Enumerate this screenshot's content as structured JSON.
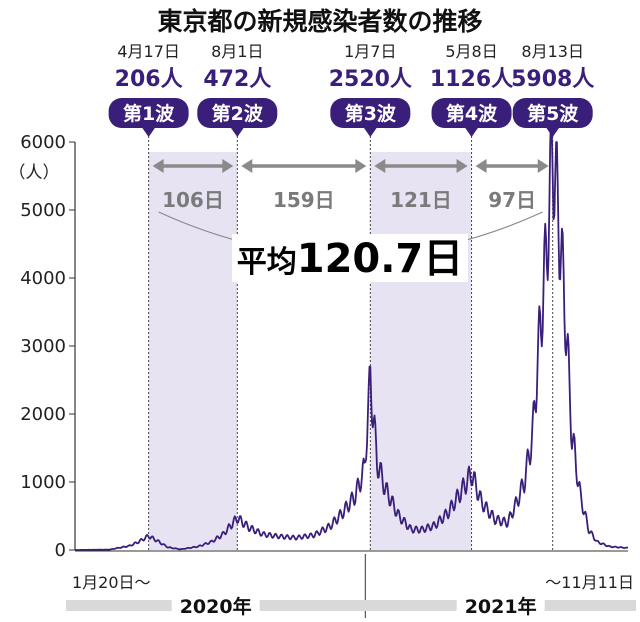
{
  "chart_data": {
    "type": "line",
    "title": "東京都の新規感染者数の推移",
    "y_unit": "（人）",
    "ylim": [
      0,
      6000
    ],
    "yticks": [
      0,
      1000,
      2000,
      3000,
      4000,
      5000,
      6000
    ],
    "x_start_label": "1月20日〜",
    "x_end_label": "〜11月11日",
    "years": [
      "2020年",
      "2021年"
    ],
    "series": [
      {
        "x": [
          "2020-01-20",
          "2020-03-01",
          "2020-03-25",
          "2020-04-05",
          "2020-04-17",
          "2020-04-28",
          "2020-05-10",
          "2020-05-25",
          "2020-06-15",
          "2020-07-01",
          "2020-07-15",
          "2020-08-01",
          "2020-08-15",
          "2020-09-01",
          "2020-09-20",
          "2020-10-10",
          "2020-11-01",
          "2020-11-20",
          "2020-12-05",
          "2020-12-20",
          "2020-12-31",
          "2021-01-07",
          "2021-01-15",
          "2021-01-25",
          "2021-02-10",
          "2021-02-25",
          "2021-03-10",
          "2021-03-25",
          "2021-04-10",
          "2021-04-25",
          "2021-05-08",
          "2021-05-20",
          "2021-06-05",
          "2021-06-20",
          "2021-07-01",
          "2021-07-10",
          "2021-07-20",
          "2021-07-28",
          "2021-08-05",
          "2021-08-13",
          "2021-08-20",
          "2021-08-28",
          "2021-09-05",
          "2021-09-15",
          "2021-09-25",
          "2021-10-05",
          "2021-10-20",
          "2021-11-11"
        ],
        "values": [
          0,
          5,
          60,
          120,
          206,
          130,
          40,
          10,
          50,
          120,
          230,
          472,
          330,
          230,
          200,
          180,
          220,
          350,
          550,
          800,
          1200,
          2520,
          1300,
          900,
          500,
          300,
          300,
          360,
          550,
          850,
          1126,
          700,
          450,
          400,
          700,
          1000,
          1700,
          3100,
          4300,
          5908,
          4900,
          3500,
          1700,
          800,
          300,
          120,
          50,
          30
        ]
      }
    ],
    "waves": [
      {
        "label": "第1波",
        "date": "4月17日",
        "count": "206人",
        "x": "2020-04-17"
      },
      {
        "label": "第2波",
        "date": "8月1日",
        "count": "472人",
        "x": "2020-08-01"
      },
      {
        "label": "第3波",
        "date": "1月7日",
        "count": "2520人",
        "x": "2021-01-07"
      },
      {
        "label": "第4波",
        "date": "5月8日",
        "count": "1126人",
        "x": "2021-05-08"
      },
      {
        "label": "第5波",
        "date": "8月13日",
        "count": "5908人",
        "x": "2021-08-13"
      }
    ],
    "intervals": [
      "106日",
      "159日",
      "121日",
      "97日"
    ],
    "average_label": "平均",
    "average_value": "120.7日"
  },
  "colors": {
    "line": "#3a1f7a",
    "marker": "#3a1f7a",
    "shade": "#e7e3f3",
    "interval": "#8a8a8a",
    "year_band": "#d9d9d9"
  }
}
